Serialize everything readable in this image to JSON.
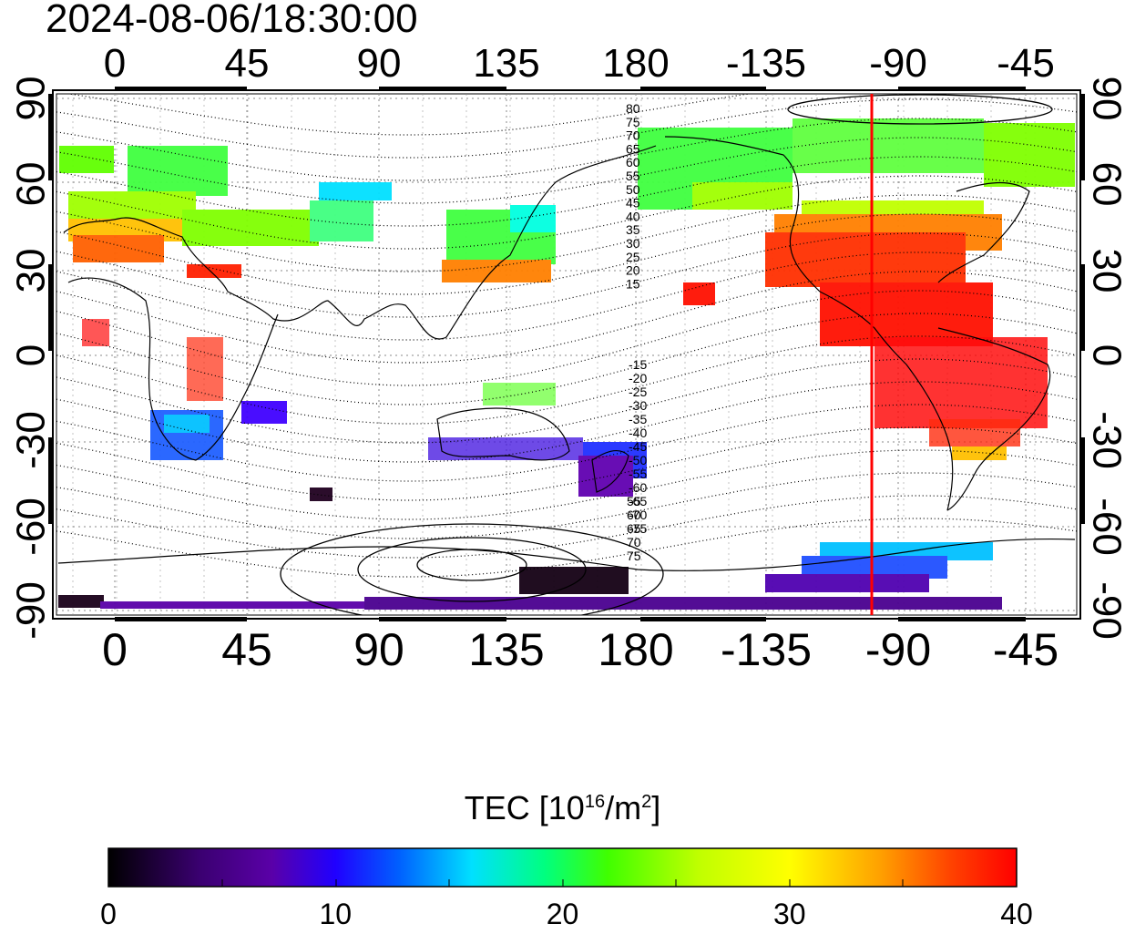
{
  "title": "2024-08-06/18:30:00",
  "map": {
    "top_lon_ticks": [
      "0",
      "45",
      "90",
      "135",
      "180",
      "-135",
      "-90",
      "-45"
    ],
    "bottom_lon_ticks": [
      "0",
      "45",
      "90",
      "135",
      "180",
      "-135",
      "-90",
      "-45"
    ],
    "left_lat_ticks": [
      "90",
      "60",
      "30",
      "0",
      "-30",
      "-60",
      "-90"
    ],
    "right_lat_ticks": [
      "90",
      "60",
      "30",
      "0",
      "-30",
      "-60",
      "-90"
    ],
    "contour_labels_north": [
      "80",
      "75",
      "70",
      "65",
      "60",
      "55",
      "50",
      "45",
      "40",
      "35",
      "30",
      "25",
      "20",
      "15"
    ],
    "contour_labels_south": [
      "-15",
      "-20",
      "-25",
      "-30",
      "-35",
      "-40",
      "-45",
      "-50",
      "-55",
      "-60",
      "-65",
      "-70",
      "-75"
    ],
    "contour_labels_far_south": [
      "55",
      "60",
      "65",
      "70",
      "75"
    ],
    "marker_line": {
      "longitude": -100,
      "color": "#ff0000"
    },
    "grid": true
  },
  "colorbar": {
    "title_main": "TEC  [10",
    "title_exp": "16",
    "title_unit": "/m",
    "title_unit_exp": "2",
    "title_close": "]",
    "min": 0,
    "max": 40,
    "ticks": [
      "0",
      "10",
      "20",
      "30",
      "40"
    ],
    "colors": [
      "#000000",
      "#3a0070",
      "#5a00a8",
      "#2000ff",
      "#0060ff",
      "#00e0ff",
      "#00ff80",
      "#40ff00",
      "#c0ff00",
      "#ffff00",
      "#ffa000",
      "#ff4000",
      "#ff0000"
    ]
  }
}
